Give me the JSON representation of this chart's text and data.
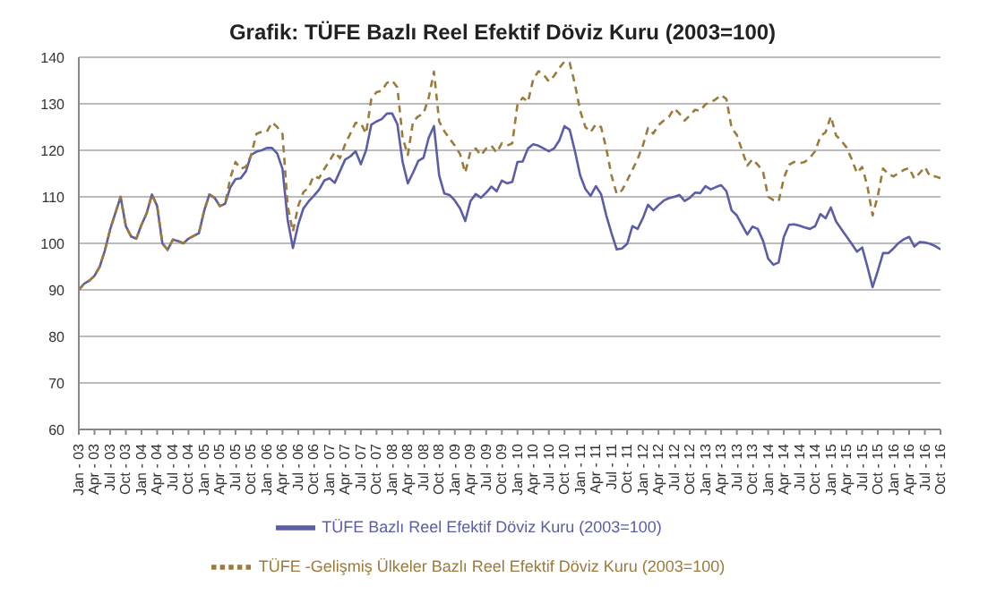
{
  "chart_data": {
    "type": "line",
    "title": "Grafik: TÜFE  Bazlı Reel Efektif Döviz Kuru (2003=100)",
    "categories": [
      "Jan - 03",
      null,
      null,
      "Apr - 03",
      null,
      null,
      "Jul - 03",
      null,
      null,
      "Oct - 03",
      null,
      null,
      "Jan - 04",
      null,
      null,
      "Apr - 04",
      null,
      null,
      "Jul - 04",
      null,
      null,
      "Oct - 04",
      null,
      null,
      "Jan - 05",
      null,
      null,
      "Apr - 05",
      null,
      null,
      "Jul - 05",
      null,
      null,
      "Oct - 05",
      null,
      null,
      "Jan - 06",
      null,
      null,
      "Apr - 06",
      null,
      null,
      "Jul - 06",
      null,
      null,
      "Oct - 06",
      null,
      null,
      "Jan - 07",
      null,
      null,
      "Apr - 07",
      null,
      null,
      "Jul - 07",
      null,
      null,
      "Oct - 07",
      null,
      null,
      "Jan - 08",
      null,
      null,
      "Apr - 08",
      null,
      null,
      "Jul - 08",
      null,
      null,
      "Oct - 08",
      null,
      null,
      "Jan - 09",
      null,
      null,
      "Apr - 09",
      null,
      null,
      "Jul - 09",
      null,
      null,
      "Oct - 09",
      null,
      null,
      "Jan - 10",
      null,
      null,
      "Apr - 10",
      null,
      null,
      "Jul - 10",
      null,
      null,
      "Oct - 10",
      null,
      null,
      "Jan - 11",
      null,
      null,
      "Apr - 11",
      null,
      null,
      "Jul - 11",
      null,
      null,
      "Oct - 11",
      null,
      null,
      "Jan - 12",
      null,
      null,
      "Apr - 12",
      null,
      null,
      "Jul - 12",
      null,
      null,
      "Oct - 12",
      null,
      null,
      "Jan - 13",
      null,
      null,
      "Apr - 13",
      null,
      null,
      "Jul - 13",
      null,
      null,
      "Oct - 13",
      null,
      null,
      "Jan - 14",
      null,
      null,
      "Apr - 14",
      null,
      null,
      "Jul - 14",
      null,
      null,
      "Oct - 14",
      null,
      null,
      "Jan - 15",
      null,
      null,
      "Apr - 15",
      null,
      null,
      "Jul - 15",
      null,
      null,
      "Oct - 15",
      null,
      null,
      "Jan - 16",
      null,
      null,
      "Apr - 16",
      null,
      null,
      "Jul - 16",
      null,
      null,
      "Oct - 16"
    ],
    "series": [
      {
        "name": "TÜFE  Bazlı Reel Efektif Döviz Kuru (2003=100)",
        "color": "#5b5ea6",
        "line_style": "solid",
        "values": [
          90,
          91.3,
          92,
          93,
          95,
          98.5,
          103,
          106.5,
          110,
          103.7,
          101.5,
          101,
          104,
          106.5,
          110.5,
          108,
          100,
          98.6,
          100.8,
          100.5,
          100,
          101,
          101.6,
          102.2,
          107,
          110.5,
          109.8,
          108,
          108.5,
          112,
          113.8,
          114,
          115.5,
          119,
          119.7,
          120,
          120.5,
          120.5,
          119.3,
          116,
          105,
          99,
          104,
          107.5,
          109,
          110.2,
          111.5,
          113.5,
          114,
          113,
          115.5,
          118,
          118.7,
          119.8,
          117,
          120,
          125.5,
          126.2,
          126.7,
          127.9,
          127.9,
          125.6,
          117.5,
          112.9,
          115.2,
          117.7,
          118.4,
          122.7,
          125.2,
          114.6,
          110.7,
          110.4,
          109.2,
          107.5,
          104.8,
          109.1,
          110.6,
          109.8,
          110.9,
          112.2,
          111.2,
          113.5,
          112.9,
          113.2,
          117.5,
          117.6,
          120.4,
          121.3,
          121,
          120.4,
          119.8,
          120.4,
          122.1,
          125.2,
          124.4,
          119.8,
          114.6,
          111.7,
          110.2,
          112.3,
          110.6,
          106,
          102.2,
          98.7,
          98.9,
          99.9,
          103.7,
          103.1,
          105.4,
          108.3,
          107.1,
          108.2,
          109.2,
          109.7,
          110,
          110.4,
          109.1,
          109.8,
          110.9,
          110.8,
          112.3,
          111.6,
          112.1,
          112.5,
          111.2,
          107.1,
          106,
          103.9,
          101.9,
          103.6,
          103.1,
          100.6,
          96.7,
          95.4,
          95.9,
          101.4,
          104,
          104.1,
          103.8,
          103.4,
          103.1,
          103.7,
          106.3,
          105.4,
          107.7,
          104.7,
          103.1,
          101.5,
          99.9,
          98.2,
          99.1,
          95,
          90.6,
          94.1,
          97.9,
          97.9,
          98.9,
          100.1,
          100.9,
          101.4,
          99.3,
          100.3,
          100.2,
          99.9,
          99.4,
          98.7
        ]
      },
      {
        "name": "TÜFE -Gelişmiş Ülkeler Bazlı Reel Efektif Döviz Kuru (2003=100)",
        "color": "#9c7a3c",
        "line_style": "dashed",
        "values": [
          90,
          91.3,
          92,
          93,
          95,
          98.5,
          103,
          106.5,
          110,
          103.7,
          101.5,
          101,
          104,
          106.5,
          110.5,
          108,
          100,
          98.6,
          100.8,
          100.5,
          100,
          101,
          101.6,
          102.2,
          107,
          110.5,
          109.8,
          108,
          108.5,
          114,
          117.5,
          116,
          116.5,
          119,
          123.5,
          124,
          124,
          126,
          125,
          123.5,
          108,
          102.5,
          108,
          111,
          112,
          114.5,
          114,
          116,
          117.7,
          119.6,
          118.3,
          121.3,
          123.6,
          125.9,
          125.8,
          123.6,
          131,
          132.5,
          132.8,
          134.5,
          135,
          133.5,
          122.7,
          119,
          126.2,
          127.3,
          127.9,
          131.3,
          136.9,
          126.2,
          124.1,
          122.5,
          121,
          119.2,
          115.2,
          119.8,
          120.4,
          118.9,
          120.4,
          121,
          119.5,
          121.5,
          121,
          121.5,
          129.9,
          131.3,
          130.4,
          135.2,
          137,
          136.3,
          134.8,
          136,
          137.7,
          139.1,
          138.8,
          134.2,
          128.5,
          125,
          123.9,
          125.6,
          125,
          120.4,
          114.6,
          110.6,
          111.4,
          113.5,
          115.8,
          118.1,
          121,
          124.8,
          123.6,
          125.4,
          126.4,
          127.2,
          129,
          127.9,
          126.4,
          127.5,
          128.7,
          128.5,
          129.9,
          130.3,
          131,
          131.9,
          131,
          124.8,
          123.3,
          120,
          116.7,
          118.1,
          116.9,
          115.5,
          110,
          109.3,
          109,
          114,
          116.9,
          117.5,
          117.2,
          117.5,
          118.4,
          119.8,
          123,
          123.9,
          127.3,
          123.2,
          122.1,
          120.6,
          118.1,
          115.1,
          116.4,
          112.3,
          106,
          110.2,
          116.1,
          114.9,
          114.4,
          115.1,
          115.8,
          116.2,
          113.9,
          115.1,
          116.4,
          114.4,
          114.4,
          114
        ]
      }
    ],
    "ylim": [
      60,
      140
    ],
    "yticks": [
      60,
      70,
      80,
      90,
      100,
      110,
      120,
      130,
      140
    ],
    "grid": "y",
    "legend": "bottom",
    "marker": "none"
  }
}
